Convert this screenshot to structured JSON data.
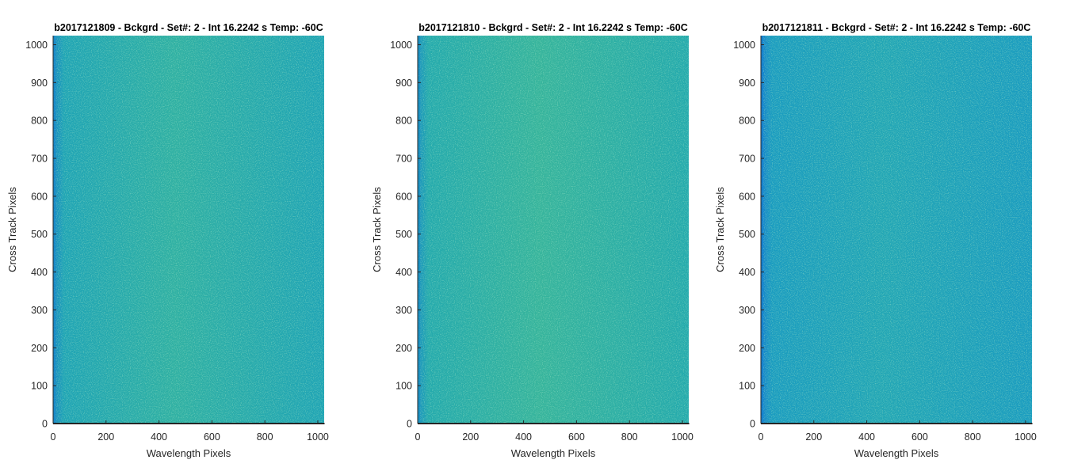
{
  "chart_data": [
    {
      "type": "heatmap",
      "title": "b2017121809 - Bckgrd - Set#: 2 - Int 16.2242 s Temp: -60C",
      "xlabel": "Wavelength Pixels",
      "ylabel": "Cross Track Pixels",
      "xlim": [
        0,
        1024
      ],
      "ylim": [
        0,
        1024
      ],
      "xticks": [
        0,
        200,
        400,
        600,
        800,
        1000
      ],
      "yticks": [
        0,
        100,
        200,
        300,
        400,
        500,
        600,
        700,
        800,
        900,
        1000
      ],
      "colormap": "parula",
      "colors": {
        "base": "#1fa4b5",
        "center": "#2fb0a3",
        "edge": "#1788c4",
        "noise_light": "#5cbf86",
        "noise_dark": "#1282cc"
      }
    },
    {
      "type": "heatmap",
      "title": "b2017121810 - Bckgrd - Set#: 2 - Int 16.2242 s Temp: -60C",
      "xlabel": "Wavelength Pixels",
      "ylabel": "Cross Track Pixels",
      "xlim": [
        0,
        1024
      ],
      "ylim": [
        0,
        1024
      ],
      "xticks": [
        0,
        200,
        400,
        600,
        800,
        1000
      ],
      "yticks": [
        0,
        100,
        200,
        300,
        400,
        500,
        600,
        700,
        800,
        900,
        1000
      ],
      "colormap": "parula",
      "colors": {
        "base": "#24aaad",
        "center": "#36b49c",
        "edge": "#1a92c0",
        "noise_light": "#66c480",
        "noise_dark": "#168bc6"
      }
    },
    {
      "type": "heatmap",
      "title": "b2017121811 - Bckgrd - Set#: 2 - Int 16.2242 s Temp: -60C",
      "xlabel": "Wavelength Pixels",
      "ylabel": "Cross Track Pixels",
      "xlim": [
        0,
        1024
      ],
      "ylim": [
        0,
        1024
      ],
      "xticks": [
        0,
        200,
        400,
        600,
        800,
        1000
      ],
      "yticks": [
        0,
        100,
        200,
        300,
        400,
        500,
        600,
        700,
        800,
        900,
        1000
      ],
      "colormap": "parula",
      "colors": {
        "base": "#1a9cc0",
        "center": "#22a6b5",
        "edge": "#1581cd",
        "noise_light": "#48b89a",
        "noise_dark": "#107ad2"
      }
    }
  ]
}
